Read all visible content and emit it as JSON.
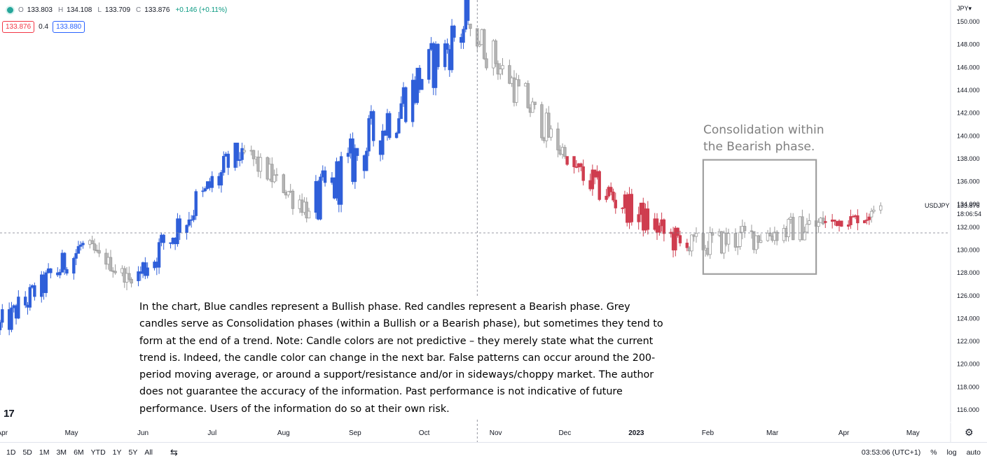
{
  "legend": {
    "open_label": "O",
    "open": "133.803",
    "high_label": "H",
    "high": "134.108",
    "low_label": "L",
    "low": "133.709",
    "close_label": "C",
    "close": "133.876",
    "change": "+0.146 (+0.11%)"
  },
  "spread": {
    "sell": "133.876",
    "spread": "0.4",
    "buy": "133.880"
  },
  "currency": "JPY",
  "note_text": "In the chart, Blue candles represent a Bullish phase. Red candles represent a Bearish phase. Grey candles serve as Consolidation phases (within a Bullish or a Bearish phase), but sometimes they tend to form at the end of a trend. Note: Candle colors are not predictive – they merely state what the current trend is. Indeed, the candle color can change in the next bar. False patterns can occur around the 200-period moving average, or around a support/resistance and/or in sideways/choppy market. The author does not guarantee the accuracy of the information. Past performance is not indicative of future performance. Users of the information do so at their own risk.",
  "logo_text": "17",
  "toolbar": {
    "ranges": [
      "1D",
      "5D",
      "1M",
      "3M",
      "6M",
      "YTD",
      "1Y",
      "5Y",
      "All"
    ],
    "time": "03:53:06 (UTC+1)",
    "percent": "%",
    "log": "log",
    "auto": "auto"
  },
  "colors": {
    "bullish": "#2f5fd9",
    "bearish": "#cf3d4f",
    "consolidation": "#9a9a9a",
    "consolidation_box": "#a0a0a0"
  },
  "chart_data": {
    "type": "candlestick",
    "symbol": "USDJPY",
    "y_axis": {
      "ticks": [
        "150.000",
        "148.000",
        "146.000",
        "144.000",
        "142.000",
        "140.000",
        "138.000",
        "136.000",
        "134.000",
        "132.000",
        "130.000",
        "128.000",
        "126.000",
        "124.000",
        "122.000",
        "120.000",
        "118.000",
        "116.000"
      ],
      "range": [
        114.9,
        151.9
      ]
    },
    "x_axis": {
      "labels": [
        "Apr",
        "May",
        "Jun",
        "Jul",
        "Aug",
        "Sep",
        "Oct",
        "Nov",
        "Dec",
        "2023",
        "Feb",
        "Mar",
        "Apr",
        "May"
      ],
      "label_dates": [
        "2022-04-01",
        "2022-05-01",
        "2022-06-01",
        "2022-07-01",
        "2022-08-01",
        "2022-09-01",
        "2022-10-01",
        "2022-11-01",
        "2022-12-01",
        "2023-01-01",
        "2023-02-01",
        "2023-03-01",
        "2023-04-01",
        "2023-05-01"
      ],
      "range": [
        "2022-03-31",
        "2023-05-17"
      ]
    },
    "last_price": {
      "symbol": "USDJPY",
      "price": "133.876",
      "countdown": "18:06:54",
      "value": 133.876
    },
    "crosshair": {
      "date": "2022-10-24",
      "price": 131.5
    },
    "annotation": {
      "text": "Consolidation within\nthe Bearish phase.",
      "start": "2023-01-30",
      "end": "2023-03-20",
      "top": 137.9,
      "bottom": 127.9
    },
    "phases": [
      {
        "phase": "bullish",
        "start": "2022-03-31",
        "end": "2022-05-06",
        "open": 123.0,
        "close": 130.6,
        "low": 121.3,
        "high": 131.2
      },
      {
        "phase": "consolidation",
        "start": "2022-05-09",
        "end": "2022-05-27",
        "open": 130.5,
        "close": 127.1,
        "low": 126.4,
        "high": 131.3
      },
      {
        "phase": "bullish",
        "start": "2022-05-30",
        "end": "2022-07-14",
        "open": 127.3,
        "close": 138.9,
        "low": 126.8,
        "high": 139.4
      },
      {
        "phase": "consolidation",
        "start": "2022-07-15",
        "end": "2022-08-12",
        "open": 138.6,
        "close": 133.4,
        "low": 130.4,
        "high": 139.2
      },
      {
        "phase": "bullish",
        "start": "2022-08-15",
        "end": "2022-10-20",
        "open": 133.3,
        "close": 150.1,
        "low": 132.6,
        "high": 151.9
      },
      {
        "phase": "consolidation",
        "start": "2022-10-21",
        "end": "2022-12-01",
        "open": 149.8,
        "close": 138.2,
        "low": 137.0,
        "high": 149.4
      },
      {
        "phase": "bearish",
        "start": "2022-12-02",
        "end": "2023-01-23",
        "open": 137.5,
        "close": 130.2,
        "low": 127.3,
        "high": 138.2
      },
      {
        "phase": "consolidation",
        "start": "2023-01-24",
        "end": "2023-03-23",
        "open": 130.2,
        "close": 132.3,
        "low": 128.2,
        "high": 137.9
      },
      {
        "phase": "bearish",
        "start": "2023-03-24",
        "end": "2023-04-12",
        "open": 132.4,
        "close": 132.9,
        "low": 129.7,
        "high": 134.0
      },
      {
        "phase": "consolidation",
        "start": "2023-04-13",
        "end": "2023-04-17",
        "open": 132.9,
        "close": 133.876,
        "low": 132.4,
        "high": 134.3
      }
    ]
  }
}
